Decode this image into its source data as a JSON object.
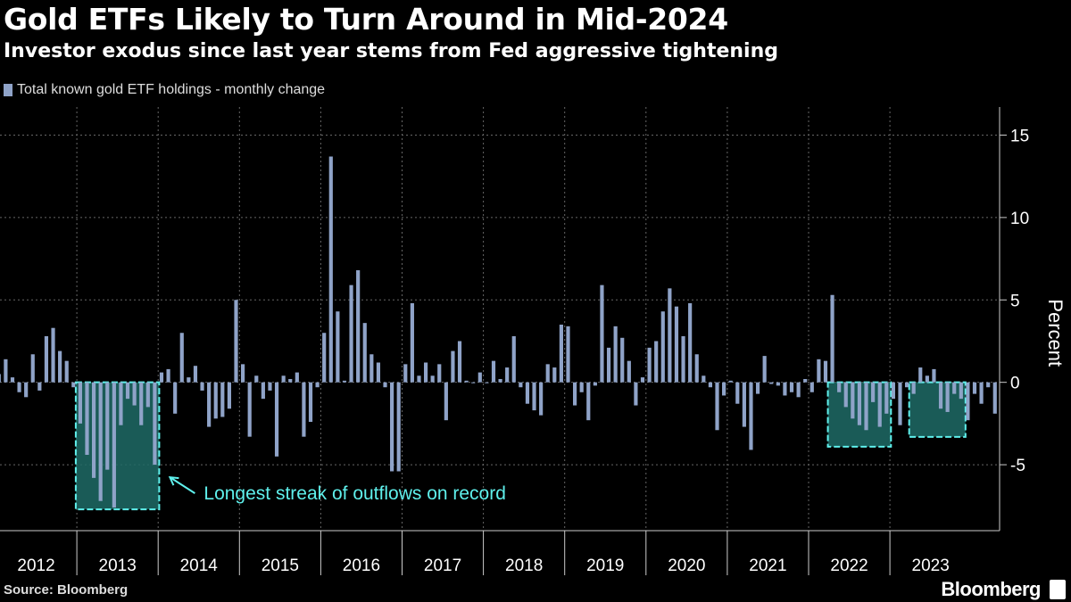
{
  "header": {
    "title": "Gold ETFs Likely to Turn Around in Mid-2024",
    "subtitle": "Investor exodus since last year stems from Fed aggressive tightening"
  },
  "footer": {
    "source": "Source: Bloomberg",
    "brand": "Bloomberg"
  },
  "colors": {
    "bar": "#8fa3c8",
    "highlight_stroke": "#5ff0ec",
    "highlight_fill": "#1f6b66",
    "annotation": "#5ff0ec",
    "grid": "#666666"
  },
  "chart_data": {
    "type": "bar",
    "title": "Gold ETFs Likely to Turn Around in Mid-2024",
    "subtitle": "Investor exodus since last year stems from Fed aggressive tightening",
    "ylabel": "Percent",
    "xlabel": "",
    "ylim": [
      -9,
      16
    ],
    "yticks": [
      15,
      10,
      5,
      0,
      -5
    ],
    "ytick_labels": [
      "15",
      "10",
      "5",
      "0",
      "-5"
    ],
    "x_labels": [
      "2012",
      "2013",
      "2014",
      "2015",
      "2016",
      "2017",
      "2018",
      "2019",
      "2020",
      "2021",
      "2022",
      "2023"
    ],
    "series": [
      {
        "name": "Total known gold ETF holdings - monthly change",
        "start": "2012-01",
        "values": [
          0.5,
          1.4,
          0.3,
          -0.6,
          -0.9,
          1.7,
          -0.5,
          2.8,
          3.3,
          1.9,
          1.3,
          -0.3,
          -2.5,
          -4.4,
          -5.8,
          -7.2,
          -5.3,
          -7.6,
          -2.6,
          -1.0,
          -1.4,
          -2.6,
          -1.5,
          -5.0,
          0.6,
          0.8,
          -1.9,
          3.0,
          0.3,
          1.0,
          -0.5,
          -2.7,
          -2.2,
          -2.1,
          -1.6,
          5.0,
          1.1,
          -3.3,
          0.4,
          -1.0,
          -0.5,
          -4.5,
          0.4,
          0.2,
          0.6,
          -3.3,
          -2.4,
          -0.3,
          3.0,
          13.7,
          4.3,
          0.1,
          5.9,
          6.8,
          3.6,
          1.7,
          1.2,
          -0.3,
          -5.4,
          -5.4,
          1.1,
          4.8,
          0.4,
          1.2,
          0.4,
          1.1,
          -2.3,
          1.9,
          2.5,
          0.1,
          0.0,
          0.6,
          0.0,
          1.3,
          0.2,
          0.9,
          2.8,
          -0.3,
          -1.3,
          -1.7,
          -2.0,
          1.1,
          0.9,
          3.5,
          3.4,
          -1.4,
          -0.6,
          -2.3,
          -0.2,
          5.9,
          2.1,
          3.4,
          2.7,
          1.3,
          -1.4,
          0.3,
          2.1,
          2.5,
          4.3,
          5.7,
          4.6,
          2.8,
          4.8,
          1.7,
          0.4,
          -0.3,
          -2.9,
          -0.8,
          0.1,
          -1.3,
          -2.7,
          -4.1,
          -0.7,
          1.6,
          -0.1,
          -0.2,
          -0.8,
          -0.6,
          -0.9,
          0.2,
          -0.6,
          1.4,
          1.3,
          5.3,
          -0.6,
          -1.5,
          -2.2,
          -2.6,
          -2.9,
          -1.2,
          -2.7,
          -1.9,
          -1.0,
          -2.6,
          -0.3,
          -0.7,
          0.9,
          0.4,
          0.8,
          -1.6,
          -1.8,
          -0.7,
          -1.0,
          -2.3,
          -0.7,
          -1.3,
          -0.3,
          -1.9
        ]
      }
    ],
    "annotations": [
      {
        "text": "Longest streak of outflows on record",
        "x_range": [
          "2013-01",
          "2013-12"
        ],
        "y_range": [
          -7.6,
          0
        ]
      },
      {
        "text": "",
        "x_range": [
          "2022-04",
          "2022-12"
        ],
        "y_range": [
          -3.8,
          0
        ]
      },
      {
        "text": "",
        "x_range": [
          "2023-04",
          "2023-11"
        ],
        "y_range": [
          -3.2,
          0
        ]
      }
    ]
  }
}
